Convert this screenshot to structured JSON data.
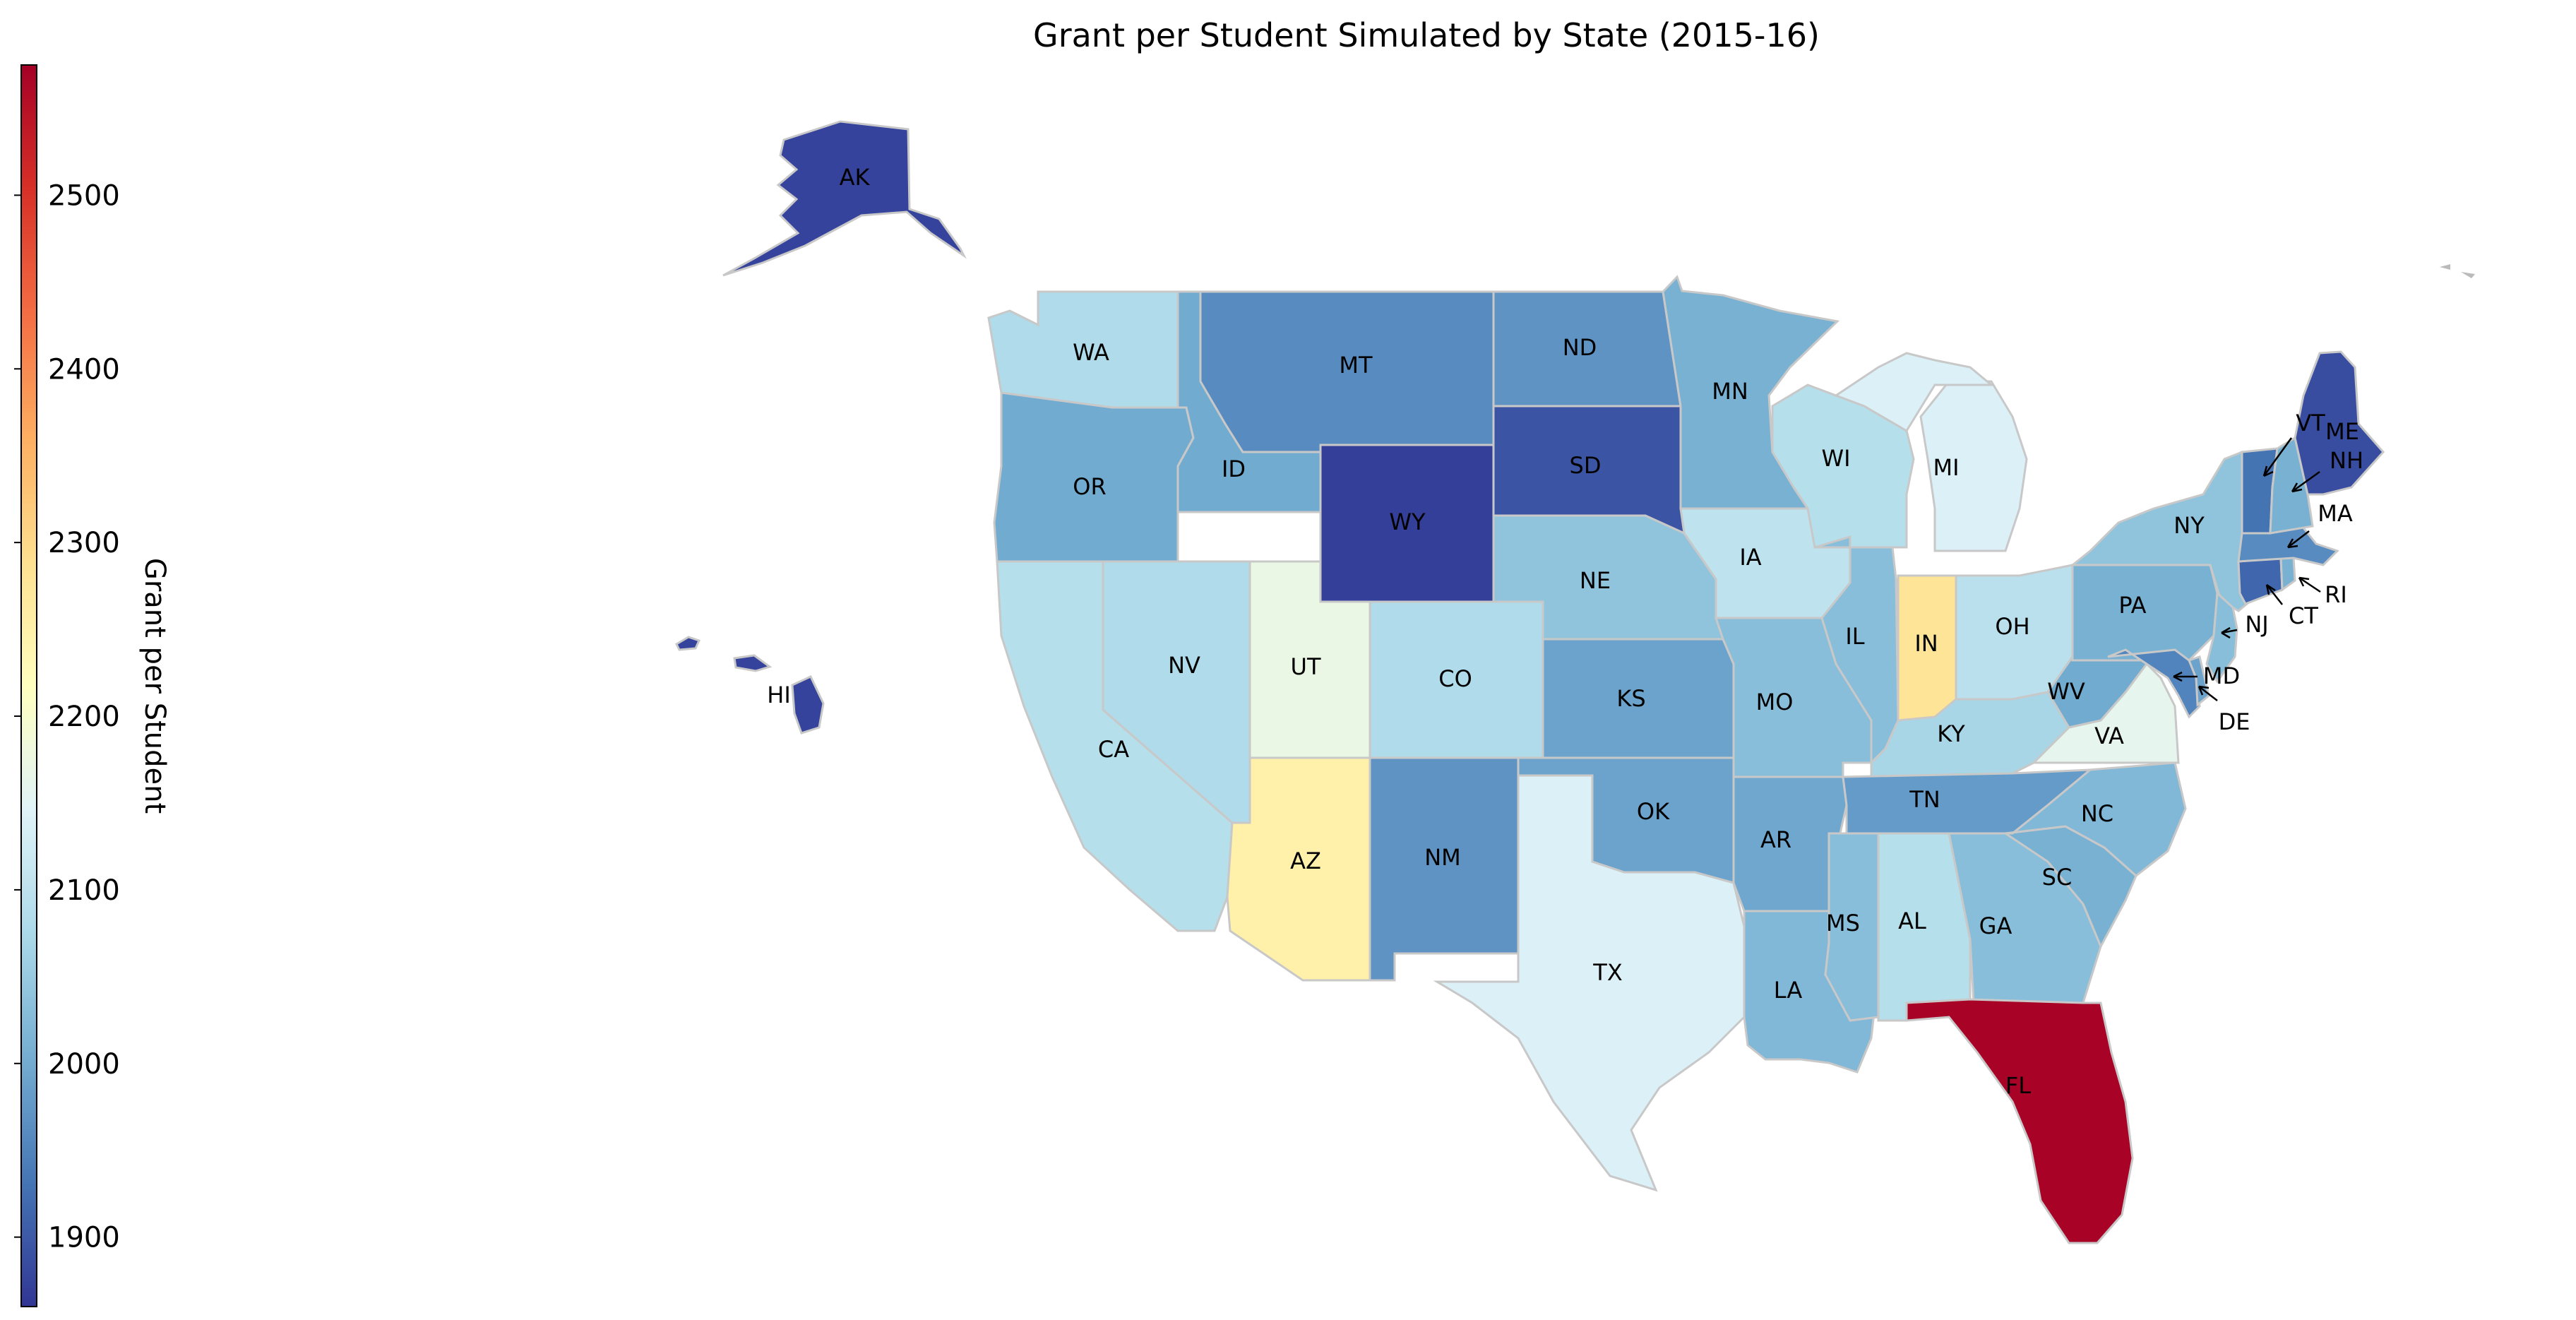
{
  "chart_data": {
    "type": "choropleth",
    "title": "Grant per Student Simulated by State (2015-16)",
    "colorbar": {
      "label": "Grant per Student",
      "range": [
        1860,
        2575
      ],
      "ticks": [
        1900,
        2000,
        2100,
        2200,
        2300,
        2400,
        2500
      ],
      "tick_labels": [
        "1900",
        "2000",
        "2100",
        "2200",
        "2300",
        "2400",
        "2500"
      ],
      "colormap": "RdYlBu_r",
      "stops": [
        "#313695",
        "#4575b4",
        "#74add1",
        "#abd9e9",
        "#e0f3f8",
        "#ffffbf",
        "#fee090",
        "#fdae61",
        "#f46d43",
        "#d73027",
        "#a50026"
      ]
    },
    "states": [
      {
        "abbr": "AK",
        "value": 1875
      },
      {
        "abbr": "HI",
        "value": 1875
      },
      {
        "abbr": "WA",
        "value": 2080
      },
      {
        "abbr": "OR",
        "value": 2000
      },
      {
        "abbr": "CA",
        "value": 2090
      },
      {
        "abbr": "ID",
        "value": 2000
      },
      {
        "abbr": "NV",
        "value": 2080
      },
      {
        "abbr": "UT",
        "value": 2170
      },
      {
        "abbr": "AZ",
        "value": 2250
      },
      {
        "abbr": "MT",
        "value": 1960
      },
      {
        "abbr": "WY",
        "value": 1870
      },
      {
        "abbr": "CO",
        "value": 2080
      },
      {
        "abbr": "NM",
        "value": 1970
      },
      {
        "abbr": "ND",
        "value": 1970
      },
      {
        "abbr": "SD",
        "value": 1895
      },
      {
        "abbr": "NE",
        "value": 2040
      },
      {
        "abbr": "KS",
        "value": 1990
      },
      {
        "abbr": "OK",
        "value": 1990
      },
      {
        "abbr": "TX",
        "value": 2140
      },
      {
        "abbr": "MN",
        "value": 2010
      },
      {
        "abbr": "IA",
        "value": 2100
      },
      {
        "abbr": "MO",
        "value": 2030
      },
      {
        "abbr": "AR",
        "value": 1995
      },
      {
        "abbr": "LA",
        "value": 2020
      },
      {
        "abbr": "WI",
        "value": 2090
      },
      {
        "abbr": "IL",
        "value": 2030
      },
      {
        "abbr": "MI",
        "value": 2140
      },
      {
        "abbr": "IN",
        "value": 2280
      },
      {
        "abbr": "OH",
        "value": 2095
      },
      {
        "abbr": "KY",
        "value": 2070
      },
      {
        "abbr": "TN",
        "value": 1980
      },
      {
        "abbr": "MS",
        "value": 2030
      },
      {
        "abbr": "AL",
        "value": 2090
      },
      {
        "abbr": "GA",
        "value": 2030
      },
      {
        "abbr": "FL",
        "value": 2570
      },
      {
        "abbr": "SC",
        "value": 2010
      },
      {
        "abbr": "NC",
        "value": 2020
      },
      {
        "abbr": "VA",
        "value": 2160
      },
      {
        "abbr": "WV",
        "value": 2000
      },
      {
        "abbr": "PA",
        "value": 2010
      },
      {
        "abbr": "NY",
        "value": 2040
      },
      {
        "abbr": "VT",
        "value": 1930
      },
      {
        "abbr": "NH",
        "value": 2010
      },
      {
        "abbr": "ME",
        "value": 1885
      },
      {
        "abbr": "MA",
        "value": 1960
      },
      {
        "abbr": "RI",
        "value": 2010
      },
      {
        "abbr": "CT",
        "value": 1915
      },
      {
        "abbr": "NJ",
        "value": 2030
      },
      {
        "abbr": "DE",
        "value": 1990
      },
      {
        "abbr": "MD",
        "value": 1950
      }
    ]
  }
}
